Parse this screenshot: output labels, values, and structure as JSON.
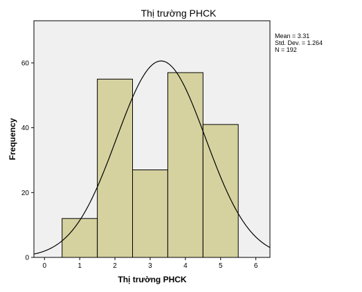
{
  "chart_data": {
    "type": "bar",
    "subtype": "histogram",
    "title": "Thị trường PHCK",
    "xlabel": "Thị trường PHCK",
    "ylabel": "Frequency",
    "xlim": [
      -0.3,
      6.4
    ],
    "ylim": [
      0,
      73
    ],
    "xticks": [
      0,
      1,
      2,
      3,
      4,
      5,
      6
    ],
    "yticks": [
      0,
      20,
      40,
      60
    ],
    "bins": [
      {
        "start": 0.5,
        "end": 1.5,
        "value": 12
      },
      {
        "start": 1.5,
        "end": 2.5,
        "value": 55
      },
      {
        "start": 2.5,
        "end": 3.5,
        "value": 27
      },
      {
        "start": 3.5,
        "end": 4.5,
        "value": 57
      },
      {
        "start": 4.5,
        "end": 5.5,
        "value": 41
      }
    ],
    "normal_curve": {
      "mean": 3.31,
      "std_dev": 1.264,
      "n": 192,
      "bin_width": 1
    },
    "stats_box": [
      "Mean = 3.31",
      "Std. Dev. = 1.264",
      "N = 192"
    ],
    "colors": {
      "bar_fill": "#d5d2a0",
      "bar_stroke": "#000000",
      "plot_bg": "#f0f0f0",
      "curve": "#000000"
    }
  }
}
